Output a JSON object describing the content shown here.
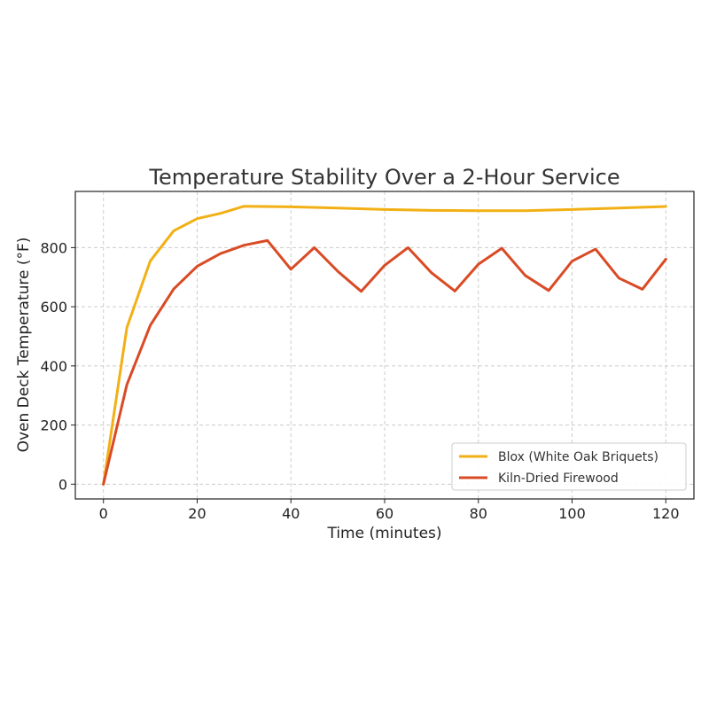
{
  "chart_data": {
    "type": "line",
    "title": "Temperature Stability Over a 2-Hour Service",
    "xlabel": "Time (minutes)",
    "ylabel": "Oven Deck Temperature (°F)",
    "xlim": [
      -6,
      126
    ],
    "ylim": [
      -50,
      990
    ],
    "xticks": [
      0,
      20,
      40,
      60,
      80,
      100,
      120
    ],
    "yticks": [
      0,
      200,
      400,
      600,
      800
    ],
    "grid": true,
    "legend_position": "lower-right",
    "series": [
      {
        "name": "Blox (White Oak Briquets)",
        "color": "#f2b015",
        "x": [
          0,
          5,
          10,
          15,
          20,
          25,
          30,
          40,
          50,
          60,
          70,
          80,
          90,
          100,
          110,
          120
        ],
        "y": [
          0,
          530,
          755,
          857,
          898,
          916,
          940,
          938,
          934,
          929,
          926,
          925,
          925,
          929,
          934,
          939
        ]
      },
      {
        "name": "Kiln-Dried Firewood",
        "color": "#d94b25",
        "x": [
          0,
          5,
          10,
          15,
          20,
          25,
          30,
          35,
          40,
          45,
          50,
          55,
          60,
          65,
          70,
          75,
          80,
          85,
          90,
          95,
          100,
          105,
          110,
          115,
          120
        ],
        "y": [
          0,
          337,
          537,
          660,
          737,
          780,
          808,
          824,
          727,
          800,
          720,
          652,
          740,
          800,
          715,
          653,
          744,
          798,
          706,
          655,
          754,
          795,
          697,
          659,
          761
        ]
      }
    ]
  }
}
